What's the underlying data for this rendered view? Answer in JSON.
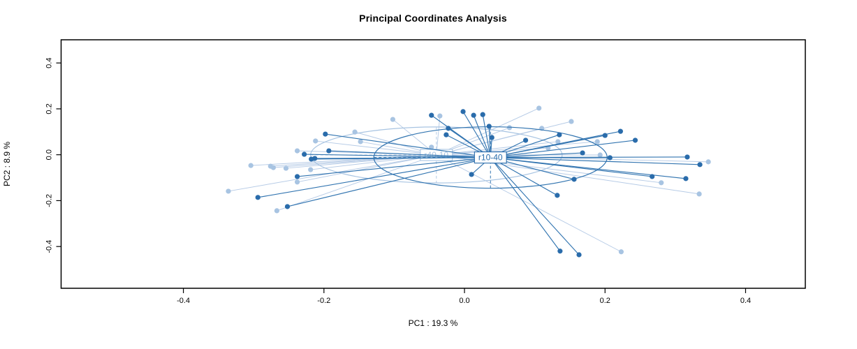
{
  "title": "Principal Coordinates Analysis",
  "chart_data": {
    "type": "scatter",
    "subtype": "pcoa-ordination-spider-ellipse",
    "title": "Principal Coordinates Analysis",
    "xlabel": "PC1 :  19.3 %",
    "ylabel": "PC2 :  8.9 %",
    "xlim": [
      -0.574,
      0.485
    ],
    "ylim": [
      -0.582,
      0.501
    ],
    "xticks": [
      -0.4,
      -0.2,
      0.0,
      0.2,
      0.4
    ],
    "yticks": [
      -0.4,
      -0.2,
      0.0,
      0.2,
      0.4
    ],
    "grid": false,
    "legend_position": "none",
    "frame_color": "#000000",
    "groups": [
      {
        "label": "r40-10",
        "point_color": "#a8c4e2",
        "line_color": "#b6cbe6",
        "centroid": [
          -0.04,
          -0.001
        ],
        "ellipse": {
          "cx": -0.04,
          "cy": -0.001,
          "rx": 0.179,
          "ry": 0.122,
          "angle": 0
        },
        "points": [
          [
            -0.156,
            0.099
          ],
          [
            -0.212,
            0.06
          ],
          [
            -0.148,
            0.057
          ],
          [
            -0.238,
            0.017
          ],
          [
            -0.304,
            -0.047
          ],
          [
            -0.276,
            -0.05
          ],
          [
            -0.272,
            -0.056
          ],
          [
            -0.254,
            -0.059
          ],
          [
            -0.219,
            -0.065
          ],
          [
            -0.238,
            -0.119
          ],
          [
            -0.336,
            -0.159
          ],
          [
            -0.267,
            -0.244
          ],
          [
            -0.102,
            0.154
          ],
          [
            -0.035,
            0.169
          ],
          [
            0.106,
            0.203
          ],
          [
            0.064,
            0.118
          ],
          [
            -0.047,
            0.033
          ],
          [
            0.152,
            0.145
          ],
          [
            0.11,
            0.115
          ],
          [
            0.189,
            0.057
          ],
          [
            0.133,
            0.057
          ],
          [
            0.193,
            -0.001
          ],
          [
            0.28,
            -0.122
          ],
          [
            0.223,
            -0.423
          ],
          [
            0.347,
            -0.031
          ],
          [
            0.334,
            -0.171
          ],
          [
            0.119,
            0.029
          ]
        ]
      },
      {
        "label": "r10-40",
        "point_color": "#2a6cab",
        "line_color": "#3174b0",
        "centroid": [
          0.037,
          -0.012
        ],
        "ellipse": {
          "cx": 0.037,
          "cy": -0.012,
          "rx": 0.166,
          "ry": 0.134,
          "angle": 0
        },
        "points": [
          [
            -0.198,
            0.09
          ],
          [
            -0.193,
            0.017
          ],
          [
            -0.228,
            0.002
          ],
          [
            -0.218,
            -0.019
          ],
          [
            -0.213,
            -0.016
          ],
          [
            -0.238,
            -0.095
          ],
          [
            -0.294,
            -0.186
          ],
          [
            -0.252,
            -0.226
          ],
          [
            -0.047,
            0.172
          ],
          [
            -0.002,
            0.188
          ],
          [
            0.013,
            0.172
          ],
          [
            0.026,
            0.175
          ],
          [
            0.035,
            0.124
          ],
          [
            -0.023,
            0.115
          ],
          [
            -0.026,
            0.087
          ],
          [
            0.039,
            0.075
          ],
          [
            0.087,
            0.063
          ],
          [
            0.135,
            0.087
          ],
          [
            0.222,
            0.102
          ],
          [
            0.2,
            0.084
          ],
          [
            0.243,
            0.063
          ],
          [
            0.168,
            0.008
          ],
          [
            0.207,
            -0.013
          ],
          [
            0.317,
            -0.01
          ],
          [
            0.267,
            -0.095
          ],
          [
            0.156,
            -0.107
          ],
          [
            0.132,
            -0.177
          ],
          [
            0.01,
            -0.086
          ],
          [
            0.136,
            -0.42
          ],
          [
            0.163,
            -0.436
          ],
          [
            0.335,
            -0.043
          ],
          [
            0.315,
            -0.104
          ]
        ]
      }
    ]
  }
}
